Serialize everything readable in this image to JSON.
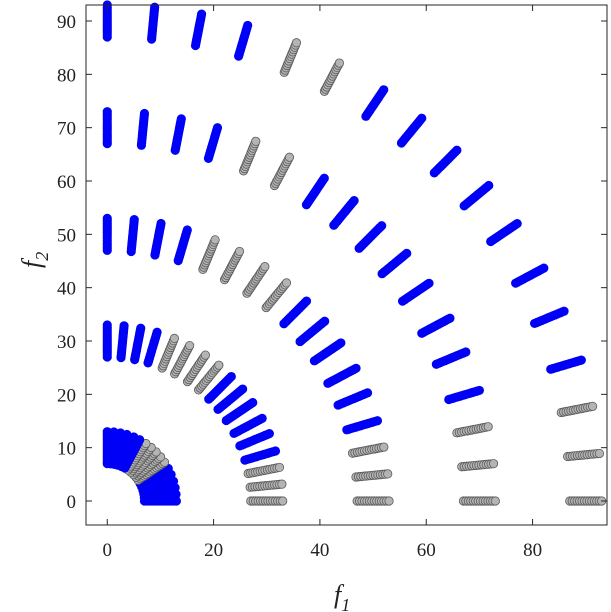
{
  "chart_data": {
    "type": "scatter",
    "title": "",
    "xlabel": "f",
    "xlabel_sub": "1",
    "ylabel": "f",
    "ylabel_sub": "2",
    "xlim": [
      -4,
      94
    ],
    "ylim": [
      -4.5,
      93
    ],
    "xticks": [
      0,
      20,
      40,
      60,
      80
    ],
    "yticks": [
      0,
      10,
      20,
      30,
      40,
      50,
      60,
      70,
      80,
      90
    ],
    "grid": false,
    "legend": "none",
    "radii": [
      10,
      30,
      50,
      70,
      90
    ],
    "ring_band": [
      0,
      1.5
    ],
    "angle_min_deg": 0,
    "angle_max_deg": 90,
    "levels_deg": [
      0,
      5.5,
      11,
      16.5,
      22.5,
      28,
      34,
      39.5,
      45,
      50.5,
      56,
      62,
      67.5,
      73.5,
      79,
      84.5,
      90
    ],
    "series": [
      {
        "color": "#0000ff",
        "edge": "#0000ee",
        "description_of_rule": "points on radial segments, filled blue"
      },
      {
        "color": "#b4b4b4",
        "edge": "#5a5a5a",
        "description_of_rule": "points on radial segments, gray"
      }
    ]
  }
}
